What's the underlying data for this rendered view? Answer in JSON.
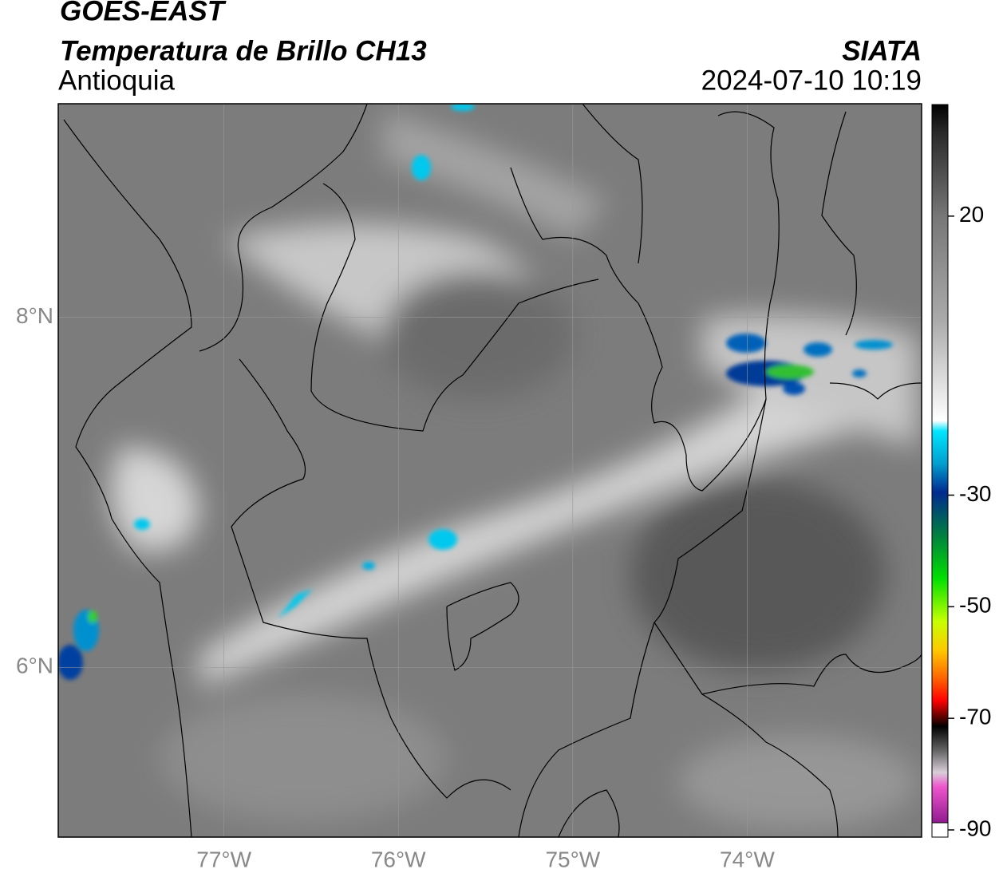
{
  "chart_data": {
    "type": "map",
    "title": "GOES-EAST",
    "subtitle": "Temperatura de Brillo CH13",
    "region": "Antioquia",
    "source": "SIATA",
    "datetime": "2024-07-10 10:19",
    "xlim": [
      -77.95,
      -73.0
    ],
    "ylim": [
      5.03,
      9.22
    ],
    "xticks": [
      {
        "value": -77,
        "label": "77°W"
      },
      {
        "value": -76,
        "label": "76°W"
      },
      {
        "value": -75,
        "label": "75°W"
      },
      {
        "value": -74,
        "label": "74°W"
      }
    ],
    "yticks": [
      {
        "value": 6,
        "label": "6°N"
      },
      {
        "value": 8,
        "label": "8°N"
      }
    ],
    "grid": true,
    "colorbar": {
      "lim": [
        -90,
        40
      ],
      "ticks": [
        -90,
        -70,
        -50,
        -30,
        20
      ]
    }
  }
}
